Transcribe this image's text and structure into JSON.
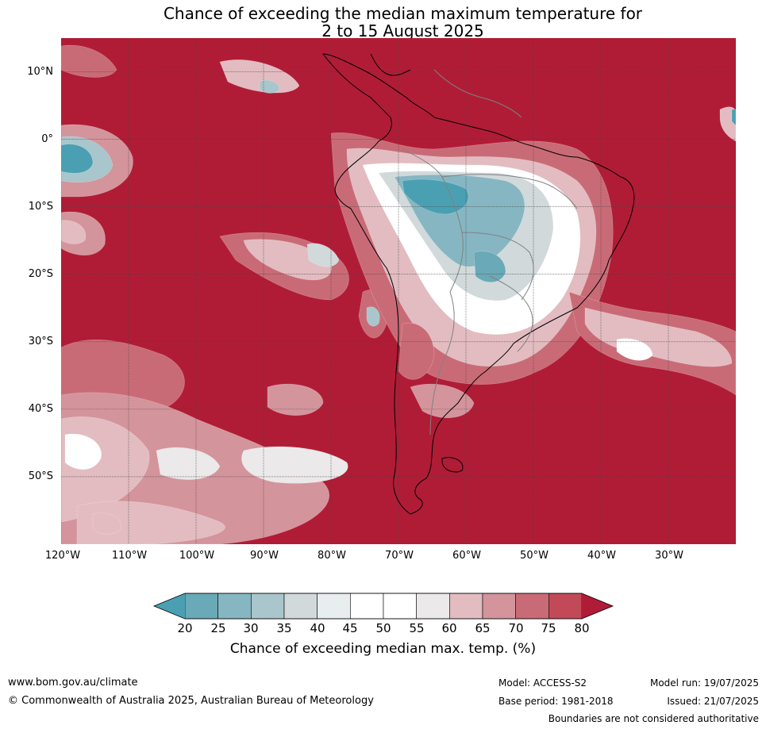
{
  "title_line1": "Chance of exceeding the median maximum temperature for",
  "title_line2": "2 to 15 August 2025",
  "map": {
    "lon_range": [
      -120,
      -20
    ],
    "lat_range": [
      -60,
      15
    ],
    "lat_ticks": [
      {
        "value": 10,
        "label": "10°N"
      },
      {
        "value": 0,
        "label": "0°"
      },
      {
        "value": -10,
        "label": "10°S"
      },
      {
        "value": -20,
        "label": "20°S"
      },
      {
        "value": -30,
        "label": "30°S"
      },
      {
        "value": -40,
        "label": "40°S"
      },
      {
        "value": -50,
        "label": "50°S"
      }
    ],
    "lon_ticks": [
      {
        "value": -120,
        "label": "120°W"
      },
      {
        "value": -110,
        "label": "110°W"
      },
      {
        "value": -100,
        "label": "100°W"
      },
      {
        "value": -90,
        "label": "90°W"
      },
      {
        "value": -80,
        "label": "80°W"
      },
      {
        "value": -70,
        "label": "70°W"
      },
      {
        "value": -60,
        "label": "60°W"
      },
      {
        "value": -50,
        "label": "50°W"
      },
      {
        "value": -40,
        "label": "40°W"
      },
      {
        "value": -30,
        "label": "30°W"
      }
    ],
    "colors": {
      "background": "#b01c36",
      "c75": "#c24a58",
      "c70": "#c96b76",
      "c65": "#d4949c",
      "c60": "#e2bcc1",
      "c55": "#ebe9ea",
      "c50": "#ffffff",
      "c45": "#e8eef0",
      "c40": "#d1d9db",
      "c35": "#a8c6cc",
      "c30": "#86b6c2",
      "c25": "#6aa9b7",
      "c20": "#4aa0b2",
      "coast": "#000000",
      "border": "#808080",
      "grid": "#444444"
    }
  },
  "colorbar": {
    "ticks": [
      "20",
      "25",
      "30",
      "35",
      "40",
      "45",
      "50",
      "55",
      "60",
      "65",
      "70",
      "75",
      "80"
    ],
    "colors": [
      "#6aa9b7",
      "#86b6c2",
      "#a8c6cc",
      "#d1d9db",
      "#e8eef0",
      "#ffffff",
      "#ffffff",
      "#ebe9ea",
      "#e2bcc1",
      "#d4949c",
      "#c96b76",
      "#c24a58"
    ],
    "low_extend_color": "#4aa0b2",
    "high_extend_color": "#b01c36",
    "label": "Chance of exceeding median max. temp. (%)"
  },
  "footer": {
    "url": "www.bom.gov.au/climate",
    "copyright": "© Commonwealth of Australia 2025, Australian Bureau of Meteorology",
    "model": "Model: ACCESS-S2",
    "base_period": "Base period: 1981-2018",
    "model_run": "Model run: 19/07/2025",
    "issued": "Issued: 21/07/2025",
    "disclaimer": "Boundaries are not considered authoritative"
  }
}
